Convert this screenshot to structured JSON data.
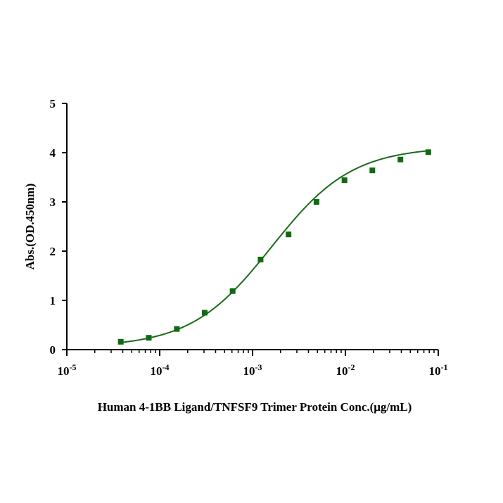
{
  "chart_data": {
    "type": "scatter",
    "xscale": "log",
    "xlim": [
      1e-05,
      0.1
    ],
    "ylim": [
      0,
      5
    ],
    "xticks": [
      {
        "value": 1e-05,
        "base": "10",
        "exp": "-5"
      },
      {
        "value": 0.0001,
        "base": "10",
        "exp": "-4"
      },
      {
        "value": 0.001,
        "base": "10",
        "exp": "-3"
      },
      {
        "value": 0.01,
        "base": "10",
        "exp": "-2"
      },
      {
        "value": 0.1,
        "base": "10",
        "exp": "-1"
      }
    ],
    "yticks": [
      0,
      1,
      2,
      3,
      4,
      5
    ],
    "xlabel": "Human 4-1BB Ligand/TNFSF9 Trimer Protein  Conc.(μg/mL)",
    "ylabel": "Abs.(OD.450nm)",
    "title": "",
    "grid": false,
    "colors": {
      "points": "#0f6a0f",
      "curve": "#1a6b1a",
      "axis": "#000000"
    },
    "series": [
      {
        "x": [
          3.81e-05,
          7.63e-05,
          0.000153,
          0.000305,
          0.00061,
          0.00122,
          0.00244,
          0.00488,
          0.00977,
          0.0195,
          0.0391,
          0.0781
        ],
        "y": [
          0.16,
          0.24,
          0.42,
          0.75,
          1.19,
          1.83,
          2.34,
          3.0,
          3.44,
          3.64,
          3.86,
          4.01
        ],
        "fit": "4PL",
        "fit_params": {
          "bottom": 0.05,
          "top": 4.12,
          "ec50": 0.0016,
          "hill": 1.0
        }
      }
    ]
  }
}
